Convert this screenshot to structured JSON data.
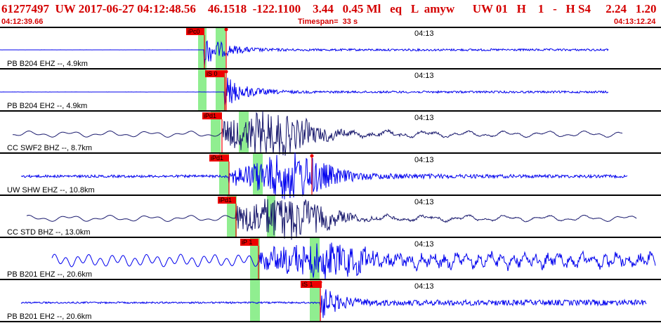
{
  "header": {
    "summary": "61277497  UW 2017-06-27 04:12:48.56    46.1518  -122.1100    3.44   0.45 Ml   eq   L  amyw      UW 01   H    1   -   H S4     2.24   1.20",
    "start_time": "04:12:39.66",
    "timespan": "Timespan=  33 s",
    "end_time": "04:13:12.24"
  },
  "colors": {
    "header_text": "#d40000",
    "trace_blue": "#0000ee",
    "trace_navy": "#1a1a6e",
    "pick_box": "#ee0000",
    "window_green": "#90ee90",
    "panel_border": "#000000"
  },
  "time_marker": "04:13",
  "traces": [
    {
      "label": "PB B204 EHZ --, 4.9km",
      "color": "blue",
      "pick_label": "iPc0",
      "onset": 0.28,
      "wave": "local_z"
    },
    {
      "label": "PB B204 EH2 --, 4.9km",
      "color": "blue",
      "pick_label": "iS 0",
      "onset": 0.3,
      "wave": "local_h"
    },
    {
      "label": "CC SWF2 BHZ --, 8.7km",
      "color": "navy",
      "pick_label": "iPd1",
      "onset": 0.33,
      "wave": "broad"
    },
    {
      "label": "UW SHW EHZ --, 10.8km",
      "color": "blue",
      "pick_label": "iPd1",
      "onset": 0.35,
      "wave": "mid"
    },
    {
      "label": "CC STD BHZ --, 13.0km",
      "color": "navy",
      "pick_label": "iPd1",
      "onset": 0.37,
      "wave": "broad2"
    },
    {
      "label": "PB B201 EHZ --, 20.6km",
      "color": "blue",
      "pick_label": "iP 1",
      "onset": 0.39,
      "wave": "far_z"
    },
    {
      "label": "PB B201 EH2 --, 20.6km",
      "color": "blue",
      "pick_label": "iS 1",
      "onset": 0.48,
      "wave": "far_h"
    }
  ]
}
